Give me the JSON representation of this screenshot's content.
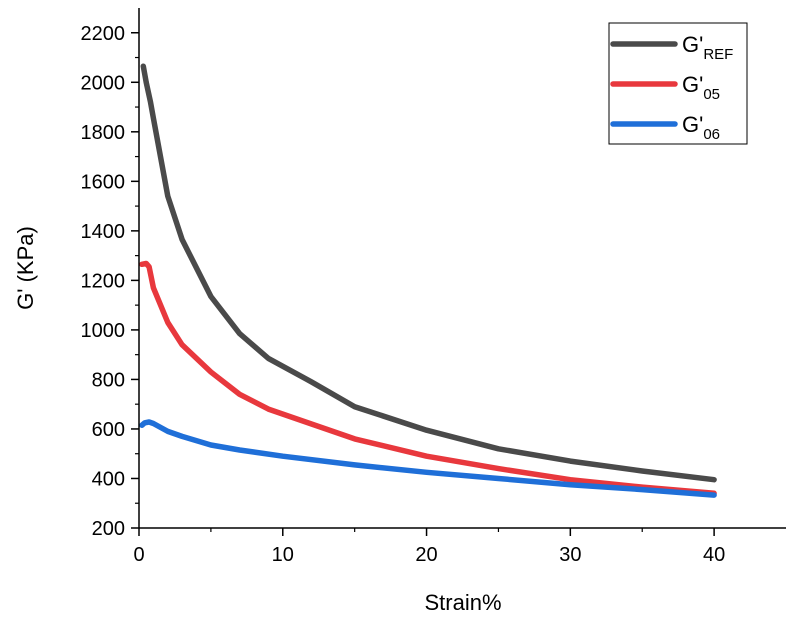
{
  "chart_data": {
    "type": "line",
    "title": "",
    "xlabel": "Strain%",
    "ylabel": "G' (KPa)",
    "xlim": [
      0,
      45
    ],
    "ylim": [
      200,
      2300
    ],
    "xticks": [
      0,
      10,
      20,
      30,
      40
    ],
    "yticks": [
      200,
      400,
      600,
      800,
      1000,
      1200,
      1400,
      1600,
      1800,
      2000,
      2200
    ],
    "legend_position": "top-right",
    "series": [
      {
        "name": "G'REF",
        "base": "G'",
        "sub": "REF",
        "color": "#4a4a4a",
        "x": [
          0.3,
          0.5,
          0.8,
          1.0,
          2.0,
          3.0,
          5.0,
          7.0,
          9.0,
          12.0,
          15.0,
          20.0,
          25.0,
          30.0,
          35.0,
          40.0
        ],
        "y": [
          2065,
          2000,
          1920,
          1855,
          1540,
          1365,
          1135,
          985,
          885,
          790,
          690,
          595,
          520,
          470,
          430,
          395
        ]
      },
      {
        "name": "G'05",
        "base": "G'",
        "sub": "05",
        "color": "#e8383d",
        "x": [
          0.2,
          0.5,
          0.7,
          1.0,
          2.0,
          3.0,
          5.0,
          7.0,
          9.0,
          12.0,
          15.0,
          20.0,
          25.0,
          30.0,
          35.0,
          40.0
        ],
        "y": [
          1265,
          1268,
          1255,
          1170,
          1030,
          940,
          830,
          740,
          680,
          620,
          560,
          490,
          440,
          395,
          365,
          340
        ]
      },
      {
        "name": "G'06",
        "base": "G'",
        "sub": "06",
        "color": "#1f6fd8",
        "x": [
          0.2,
          0.4,
          0.7,
          1.0,
          2.0,
          3.0,
          5.0,
          7.0,
          10.0,
          15.0,
          20.0,
          25.0,
          30.0,
          35.0,
          40.0
        ],
        "y": [
          615,
          625,
          628,
          622,
          590,
          570,
          535,
          515,
          490,
          455,
          425,
          400,
          375,
          355,
          333
        ]
      }
    ]
  }
}
